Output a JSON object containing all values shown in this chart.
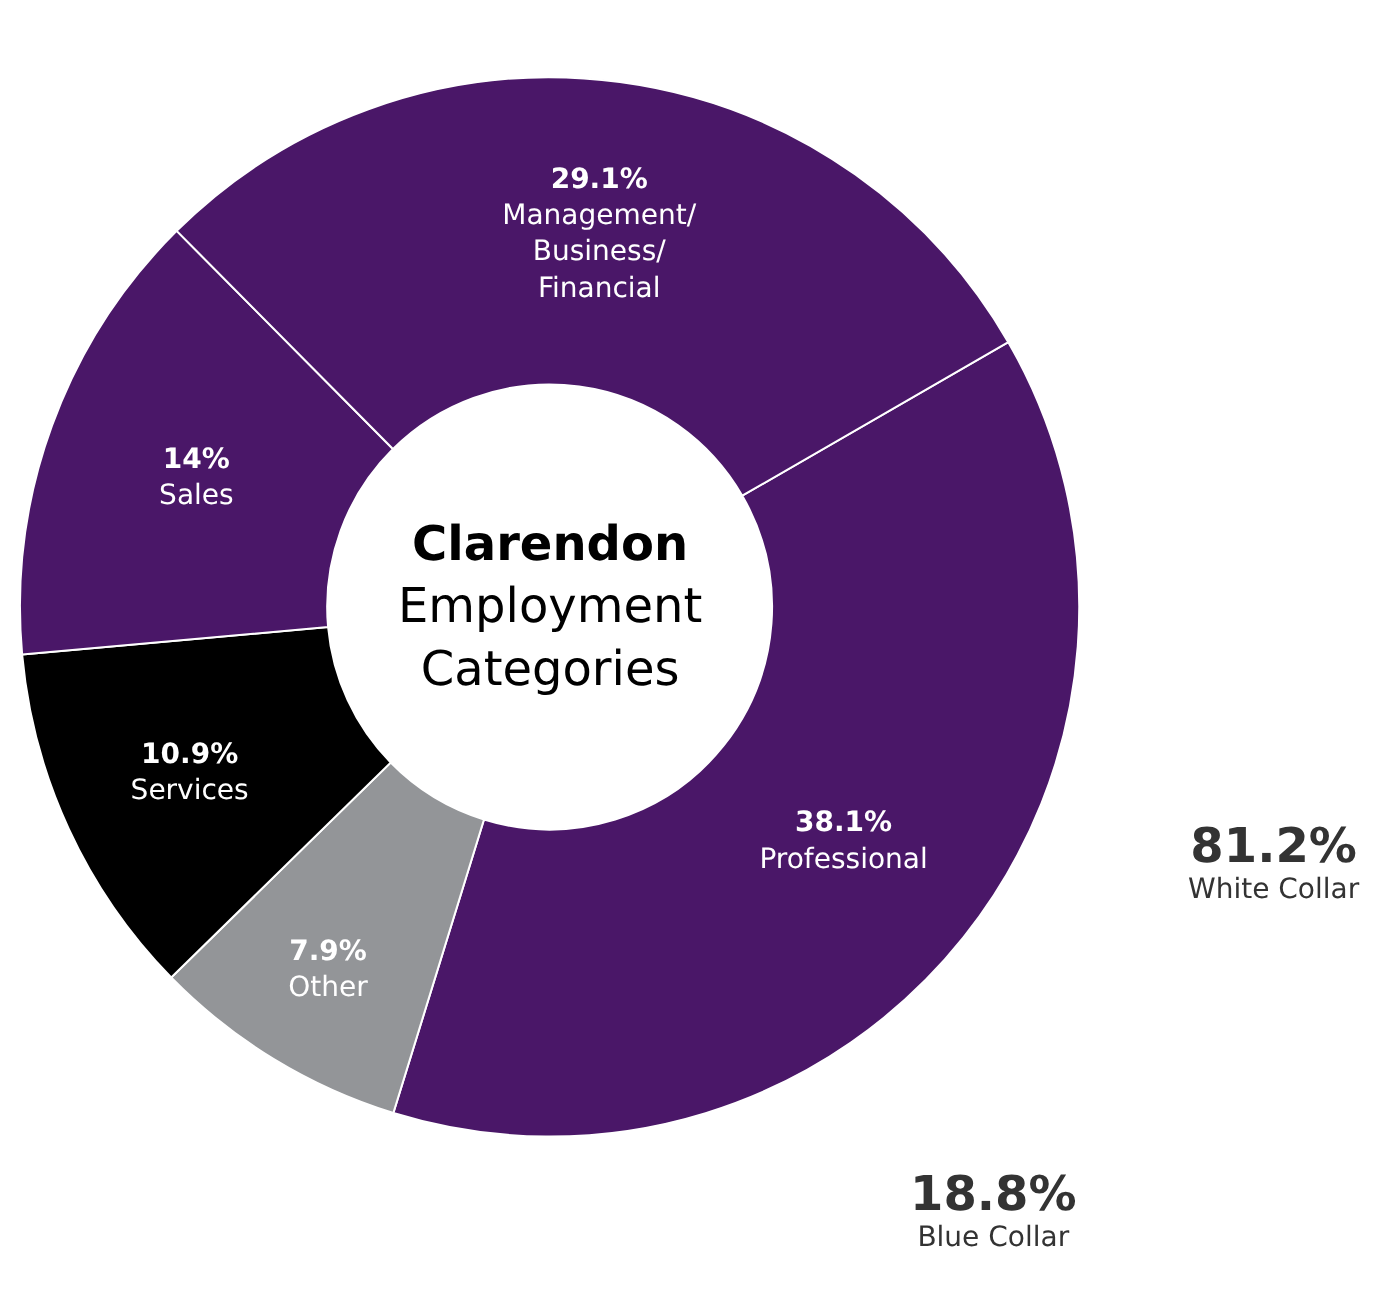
{
  "chart_data": {
    "type": "donut",
    "title": "Clarendon",
    "subtitle": "Employment Categories",
    "categories": [
      "Professional",
      "Other",
      "Services",
      "Sales",
      "Management/Business/Financial"
    ],
    "values": [
      38.1,
      7.9,
      10.9,
      14,
      29.1
    ],
    "value_labels": [
      "38.1%",
      "7.9%",
      "10.9%",
      "14%",
      "29.1%"
    ],
    "colors": [
      "#4a1768",
      "#939598",
      "#000000",
      "#4a1768",
      "#4a1768"
    ],
    "annotations": [
      "81.2%\nWhite Collar",
      "18.8%\nBlue Collar"
    ],
    "legend": false
  }
}
